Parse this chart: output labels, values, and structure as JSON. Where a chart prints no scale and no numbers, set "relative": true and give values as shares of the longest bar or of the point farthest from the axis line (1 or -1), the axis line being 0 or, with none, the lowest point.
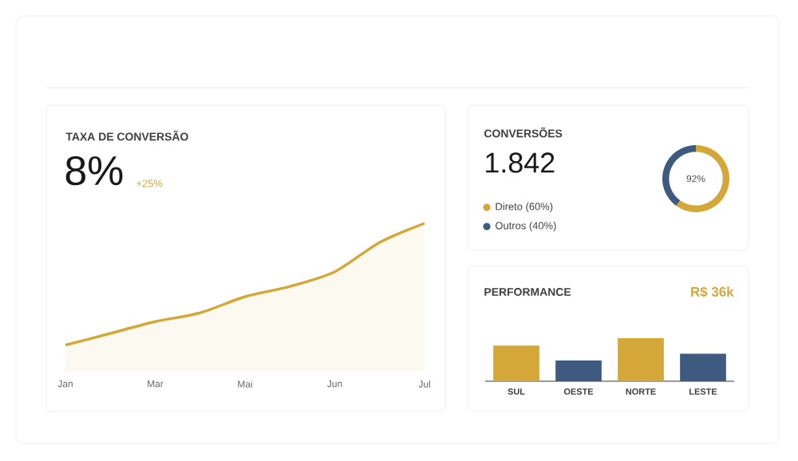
{
  "chart_data": [
    {
      "type": "area",
      "title": "TAXA DE CONVERSÃO",
      "subtitle": "8%",
      "annotations": [
        "+25%"
      ],
      "categories": [
        "Jan",
        null,
        "Mar",
        null,
        "Mai",
        null,
        "Jun",
        null,
        "Jul"
      ],
      "values": [
        0.17,
        0.25,
        0.33,
        0.39,
        0.5,
        0.57,
        0.67,
        0.87,
        1.0
      ],
      "color": "#d4a838",
      "relative": true
    },
    {
      "type": "donut",
      "title": "CONVERSÕES",
      "subtitle": "1.842",
      "annotations": [
        "92%"
      ],
      "categories": [
        "Direto (60%)",
        "Outros (40%)"
      ],
      "values": [
        60,
        40
      ],
      "colors": [
        "#d4a838",
        "#3e5a7e"
      ],
      "legend": "left"
    },
    {
      "type": "bar",
      "title": "PERFORMANCE",
      "subtitle": "R$ 36k",
      "categories": [
        "SUL",
        "OESTE",
        "NORTE",
        "LESTE"
      ],
      "values": [
        0.83,
        0.48,
        1.0,
        0.64
      ],
      "colors": [
        "#d4a838",
        "#3e5a7e",
        "#d4a838",
        "#3e5a7e"
      ],
      "relative": true
    }
  ]
}
